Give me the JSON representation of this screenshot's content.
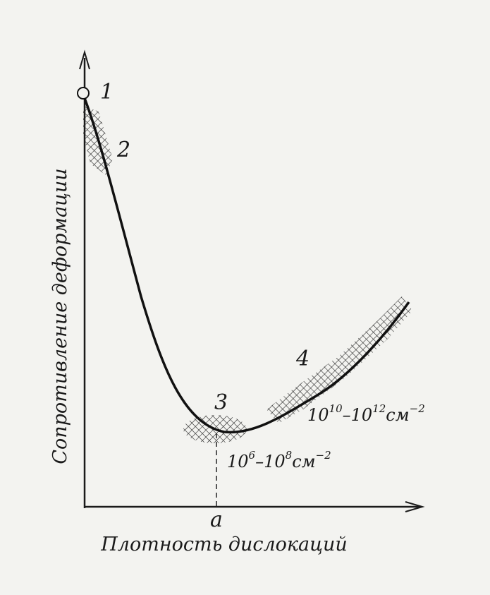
{
  "y_axis_label": "Сопротивление деформации",
  "x_axis_label": "Плотность дислокаций",
  "x_marker": "a",
  "points": [
    {
      "label": "1"
    },
    {
      "label": "2"
    },
    {
      "label": "3"
    },
    {
      "label": "4"
    }
  ],
  "annotations": [
    {
      "parts": [
        "10",
        "6",
        "–10",
        "8",
        "см",
        "−2"
      ]
    },
    {
      "parts": [
        "10",
        "10",
        "–10",
        "12",
        "см",
        "−2"
      ]
    }
  ]
}
